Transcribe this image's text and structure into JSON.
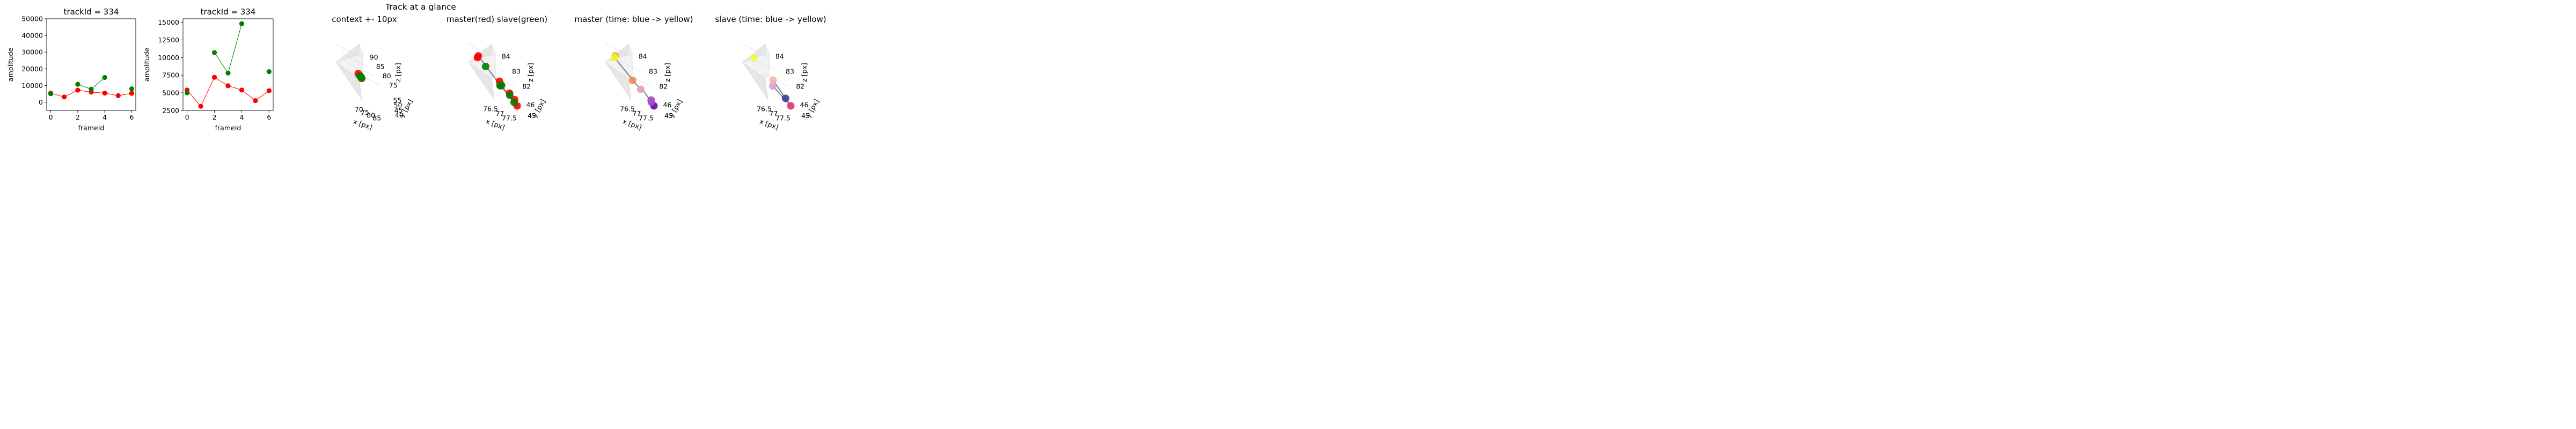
{
  "figure": {
    "suptitle": "Track at a glance"
  },
  "colors": {
    "master": "#ff0000",
    "slave": "#008000",
    "track_line": "#808080",
    "pane": "#f2f2f2",
    "pane_shade": "#e6e6e6",
    "grid": "#d8d8d8"
  },
  "chart_data": [
    {
      "type": "line",
      "title": "trackId = 334",
      "xlabel": "frameId",
      "ylabel": "amplitude",
      "xlim": [
        -0.3,
        6.3
      ],
      "ylim": [
        -5000,
        50000
      ],
      "xticks": [
        0,
        2,
        4,
        6
      ],
      "yticks": [
        0,
        10000,
        20000,
        30000,
        40000,
        50000
      ],
      "series": [
        {
          "color": "#ff0000",
          "x": [
            0,
            1,
            2,
            3,
            4,
            5,
            6
          ],
          "y": [
            5400,
            3100,
            7200,
            6000,
            5400,
            3900,
            5300
          ]
        },
        {
          "color": "#008000",
          "x": [
            0
          ],
          "y": [
            5000
          ]
        },
        {
          "color": "#008000",
          "x": [
            2,
            3,
            4
          ],
          "y": [
            10700,
            7800,
            14800
          ]
        },
        {
          "color": "#008000",
          "x": [
            6
          ],
          "y": [
            8000
          ]
        }
      ]
    },
    {
      "type": "line",
      "title": "trackId = 334",
      "xlabel": "frameId",
      "ylabel": "amplitude",
      "xlim": [
        -0.3,
        6.3
      ],
      "ylim": [
        2500,
        15500
      ],
      "xticks": [
        0,
        2,
        4,
        6
      ],
      "yticks": [
        2500,
        5000,
        7500,
        10000,
        12500,
        15000
      ],
      "series": [
        {
          "color": "#ff0000",
          "x": [
            0,
            1,
            2,
            3,
            4,
            5,
            6
          ],
          "y": [
            5400,
            3100,
            7200,
            6000,
            5400,
            3900,
            5300
          ]
        },
        {
          "color": "#008000",
          "x": [
            0
          ],
          "y": [
            5000
          ]
        },
        {
          "color": "#008000",
          "x": [
            2,
            3,
            4
          ],
          "y": [
            10700,
            7800,
            14800
          ]
        },
        {
          "color": "#008000",
          "x": [
            6
          ],
          "y": [
            8000
          ]
        }
      ]
    },
    {
      "type": "scatter",
      "title": "context +- 10px",
      "xlabel": "x [px]",
      "ylabel": "y [px]",
      "zlabel": "z [px]",
      "xlim": [
        66,
        88
      ],
      "ylim": [
        35,
        57
      ],
      "zlim": [
        72,
        92
      ],
      "xticks": [
        70,
        75,
        80,
        85
      ],
      "yticks": [
        40,
        45,
        50,
        55
      ],
      "zticks": [
        75,
        80,
        85,
        90
      ],
      "series": [
        {
          "color": "#ff0000",
          "points": [
            [
              77.1,
              45.6,
              82.4
            ],
            [
              77.6,
              45.0,
              81.8
            ],
            [
              77.3,
              45.5,
              82.9
            ],
            [
              77.6,
              45.3,
              82.0
            ],
            [
              76.9,
              45.7,
              83.8
            ],
            [
              77.2,
              45.5,
              82.2
            ]
          ]
        },
        {
          "color": "#008000",
          "points": [
            [
              77.2,
              45.6,
              82.5
            ],
            [
              77.5,
              45.1,
              81.9
            ],
            [
              77.2,
              45.3,
              82.7
            ],
            [
              77.4,
              45.4,
              82.1
            ]
          ]
        }
      ]
    },
    {
      "type": "scatter",
      "title": "master(red) slave(green)",
      "xlabel": "x [px]",
      "ylabel": "y [px]",
      "zlabel": "z [px]",
      "xlim": [
        76.3,
        77.7
      ],
      "ylim": [
        44.6,
        46.6
      ],
      "zlim": [
        81.7,
        84.2
      ],
      "xticks": [
        76.5,
        77.0,
        77.5
      ],
      "yticks": [
        45,
        46
      ],
      "zticks": [
        82,
        83,
        84
      ],
      "lines": [
        [
          [
            76.9,
            45.7,
            84.2
          ],
          [
            77.1,
            45.6,
            82.4
          ],
          [
            77.6,
            45.0,
            81.8
          ]
        ],
        [
          [
            77.2,
            45.6,
            82.5
          ],
          [
            77.5,
            45.1,
            81.9
          ],
          [
            77.4,
            45.4,
            82.1
          ]
        ]
      ],
      "series": [
        {
          "color": "#ff0000",
          "points": [
            [
              76.9,
              45.7,
              84.2
            ],
            [
              77.1,
              45.6,
              82.4
            ],
            [
              77.6,
              45.0,
              81.8
            ],
            [
              77.3,
              45.5,
              82.9
            ],
            [
              77.6,
              45.3,
              82.0
            ],
            [
              76.7,
              45.8,
              83.9
            ],
            [
              77.5,
              45.4,
              82.3
            ]
          ]
        },
        {
          "color": "#008000",
          "points": [
            [
              77.2,
              45.6,
              82.5
            ],
            [
              77.5,
              45.1,
              81.9
            ],
            [
              77.2,
              45.3,
              82.7
            ],
            [
              77.4,
              45.4,
              82.1
            ],
            [
              77.0,
              45.5,
              83.7
            ]
          ]
        }
      ]
    },
    {
      "type": "scatter",
      "title": "master (time: blue -> yellow)",
      "xlabel": "x [px]",
      "ylabel": "y [px]",
      "zlabel": "z [px]",
      "xlim": [
        76.3,
        77.7
      ],
      "ylim": [
        44.6,
        46.6
      ],
      "zlim": [
        81.7,
        84.2
      ],
      "xticks": [
        76.5,
        77.0,
        77.5
      ],
      "yticks": [
        45,
        46
      ],
      "zticks": [
        82,
        83,
        84
      ],
      "lines": [
        [
          [
            76.9,
            45.7,
            84.2
          ],
          [
            76.7,
            45.8,
            83.9
          ],
          [
            77.1,
            45.6,
            82.4
          ],
          [
            77.3,
            45.6,
            82.3
          ],
          [
            77.6,
            45.0,
            81.8
          ]
        ]
      ],
      "series": [
        {
          "color": "#6a00a8",
          "points": [
            [
              77.6,
              45.0,
              81.8
            ]
          ]
        },
        {
          "color": "#7a5fb5",
          "points": [
            [
              77.55,
              45.1,
              81.95
            ]
          ]
        },
        {
          "color": "#b04ac6",
          "points": [
            [
              77.6,
              45.2,
              82.05
            ]
          ]
        },
        {
          "color": "#e7a0b8",
          "points": [
            [
              77.2,
              45.5,
              82.3
            ]
          ]
        },
        {
          "color": "#f08a50",
          "points": [
            [
              77.0,
              45.6,
              82.7
            ]
          ]
        },
        {
          "color": "#f6a43a",
          "points": [
            [
              76.9,
              45.7,
              84.2
            ]
          ]
        },
        {
          "color": "#f0f921",
          "points": [
            [
              76.7,
              45.8,
              83.9
            ]
          ]
        }
      ]
    },
    {
      "type": "scatter",
      "title": "slave (time: blue -> yellow)",
      "xlabel": "x [px]",
      "ylabel": "y [px]",
      "zlabel": "z [px]",
      "xlim": [
        76.3,
        77.7
      ],
      "ylim": [
        44.6,
        46.6
      ],
      "zlim": [
        81.7,
        84.2
      ],
      "xticks": [
        76.5,
        77.0,
        77.5
      ],
      "yticks": [
        45,
        46
      ],
      "zticks": [
        82,
        83,
        84
      ],
      "lines": [
        [
          [
            77.6,
            45.0,
            81.8
          ],
          [
            77.5,
            45.2,
            82.1
          ],
          [
            77.3,
            45.6,
            82.9
          ]
        ],
        [
          [
            77.6,
            45.0,
            81.8
          ],
          [
            77.0,
            45.5,
            82.4
          ]
        ]
      ],
      "series": [
        {
          "color": "#e5307a",
          "points": [
            [
              77.6,
              45.0,
              81.8
            ]
          ]
        },
        {
          "color": "#3f3c9a",
          "points": [
            [
              77.5,
              45.2,
              82.1
            ]
          ]
        },
        {
          "color": "#d9a0e0",
          "points": [
            [
              77.0,
              45.5,
              82.4
            ]
          ]
        },
        {
          "color": "#f1b9a0",
          "points": [
            [
              77.3,
              45.6,
              82.9
            ]
          ]
        },
        {
          "color": "#f0f94a",
          "points": [
            [
              76.9,
              45.8,
              84.0
            ]
          ]
        }
      ]
    }
  ]
}
